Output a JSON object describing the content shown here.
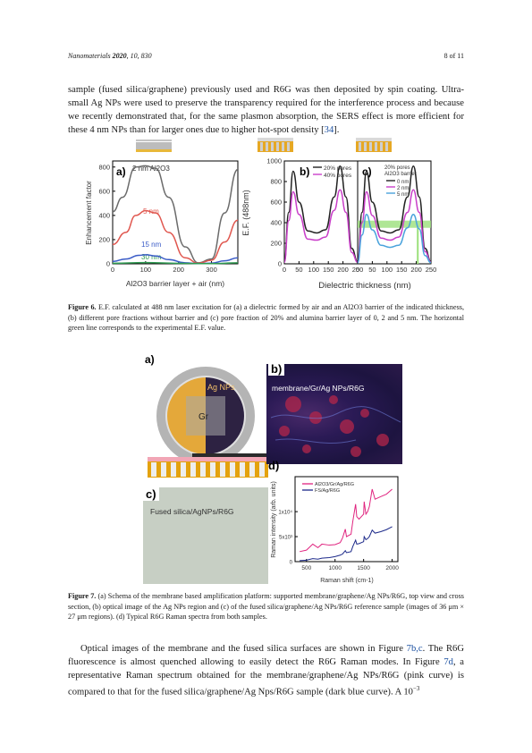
{
  "header": {
    "journal": "Nanomaterials",
    "year": "2020",
    "rest": ", 10, 830",
    "page": "8 of 11"
  },
  "para1": {
    "text": "sample (fused silica/graphene) previously used and R6G was then deposited by spin coating. Ultra-small Ag NPs were used to preserve the transparency required for the interference process and because we recently demonstrated that, for the same plasmon absorption, the SERS effect is more efficient for these 4 nm NPs than for larger ones due to higher hot-spot density [",
    "ref": "34",
    "end": "]."
  },
  "fig6": {
    "caption_label": "Figure 6.",
    "caption_text": " E.F. calculated at 488 nm laser excitation for (a) a dielectric formed by air and an Al2O3 barrier of the indicated thickness, (b) different pore fractions without barrier and (c) pore fraction of 20% and alumina barrier layer of 0, 2 and 5 nm. The horizontal green line corresponds to the experimental E.F. value.",
    "panel_a": {
      "label": "a)",
      "ylabel": "Enhancement factor",
      "xlabel": "Al2O3 barrier layer + air (nm)",
      "curve_labels": [
        "2 nm Al2O3",
        "5 nm",
        "15 nm",
        "30 nm"
      ]
    },
    "panel_b": {
      "label": "b)",
      "ylabel": "E.F. (488nm)",
      "legend": [
        "20% pores",
        "40% pores"
      ]
    },
    "panel_c": {
      "label": "c)",
      "legend_title": [
        "20% pores",
        "Al2O3 barrier"
      ],
      "legend": [
        "0 nm",
        "2 nm",
        "5 nm"
      ]
    },
    "shared_xlabel": "Dielectric thickness (nm)",
    "colors": {
      "gray": "#6b6b6b",
      "red": "#e0574f",
      "blue": "#3a5bc7",
      "green": "#2f9b52",
      "magenta": "#c93fc9",
      "black": "#222222",
      "lightblue": "#4aa3dc",
      "bar": "#9be07a"
    }
  },
  "fig7": {
    "caption_label": "Figure 7.",
    "caption_text": " (a) Schema of the membrane based amplification platform: supported membrane/graphene/Ag NPs/R6G, top view and cross section, (b) optical image of the Ag NPs region and (c) of the fused silica/graphene/Ag NPs/R6G reference sample (images of 36 μm × 27 μm regions). (d) Typical R6G Raman spectra from both samples.",
    "panel_a": {
      "label": "a)",
      "np_label": "Ag NPs",
      "gr_label": "Gr"
    },
    "panel_b": {
      "label": "b)",
      "title": "membrane/Gr/Ag NPs/R6G"
    },
    "panel_c": {
      "label": "c)",
      "title": "Fused silica/AgNPs/R6G"
    },
    "panel_d": {
      "label": "d)",
      "ylabel": "Raman intensity (arb. units)",
      "xlabel": "Raman shift (cm-1)",
      "legend": [
        "Al2O3/Gr/Ag/R6G",
        "FS/Ag/R6G"
      ]
    }
  },
  "para2": {
    "text1": "Optical images of the membrane and the fused silica surfaces are shown in Figure ",
    "ref1": "7b,c",
    "text2": ". The R6G fluorescence is almost quenched allowing to easily detect the R6G Raman modes. In Figure ",
    "ref2": "7d",
    "text3": ", a representative Raman spectrum obtained for the membrane/graphene/Ag NPs/R6G (pink curve) is compared to that for the fused silica/graphene/Ag Nps/R6G sample (dark blue curve). A 10",
    "sup": "−3"
  },
  "chart_data": [
    {
      "type": "line",
      "title": "a)",
      "xlabel": "Al2O3 barrier layer + air (nm)",
      "ylabel": "Enhancement factor",
      "xlim": [
        0,
        380
      ],
      "ylim": [
        0,
        850
      ],
      "xticks": [
        0,
        100,
        200,
        300
      ],
      "yticks": [
        0,
        200,
        400,
        600,
        800
      ],
      "series": [
        {
          "name": "2 nm Al2O3",
          "x": [
            0,
            30,
            70,
            100,
            130,
            170,
            220,
            260,
            300,
            340,
            380
          ],
          "y": [
            430,
            550,
            800,
            810,
            790,
            550,
            140,
            8,
            40,
            420,
            780
          ]
        },
        {
          "name": "5 nm",
          "x": [
            0,
            40,
            70,
            100,
            130,
            170,
            220,
            260,
            300,
            340,
            380
          ],
          "y": [
            160,
            260,
            400,
            440,
            420,
            260,
            50,
            5,
            30,
            180,
            360
          ]
        },
        {
          "name": "15 nm",
          "x": [
            0,
            40,
            80,
            100,
            130,
            170,
            220,
            260,
            300,
            340,
            380
          ],
          "y": [
            20,
            40,
            70,
            75,
            65,
            35,
            8,
            2,
            6,
            25,
            50
          ]
        },
        {
          "name": "30 nm",
          "x": [
            0,
            100,
            200,
            300,
            380
          ],
          "y": [
            5,
            10,
            4,
            2,
            8
          ]
        }
      ]
    },
    {
      "type": "line",
      "title": "b)",
      "xlabel": "Dielectric thickness (nm)",
      "ylabel": "E.F. (488nm)",
      "xlim": [
        0,
        250
      ],
      "ylim": [
        0,
        1000
      ],
      "xticks": [
        0,
        50,
        100,
        150,
        200,
        250
      ],
      "yticks": [
        0,
        200,
        400,
        600,
        800,
        1000
      ],
      "series": [
        {
          "name": "20% pores",
          "x": [
            0,
            15,
            30,
            50,
            80,
            110,
            140,
            170,
            190,
            210,
            230,
            250
          ],
          "y": [
            20,
            500,
            900,
            600,
            320,
            300,
            330,
            650,
            950,
            650,
            150,
            20
          ]
        },
        {
          "name": "40% pores",
          "x": [
            0,
            15,
            30,
            50,
            80,
            110,
            140,
            170,
            190,
            210,
            230,
            250
          ],
          "y": [
            15,
            420,
            700,
            480,
            240,
            230,
            260,
            520,
            720,
            500,
            110,
            15
          ]
        }
      ]
    },
    {
      "type": "line",
      "title": "c)",
      "xlabel": "Dielectric thickness (nm)",
      "ylabel": "",
      "xlim": [
        0,
        250
      ],
      "ylim": [
        0,
        1000
      ],
      "xticks": [
        0,
        50,
        100,
        150,
        200,
        250
      ],
      "series": [
        {
          "name": "0 nm",
          "x": [
            0,
            15,
            30,
            50,
            80,
            110,
            140,
            170,
            190,
            210,
            230,
            250
          ],
          "y": [
            20,
            500,
            900,
            600,
            320,
            300,
            330,
            650,
            950,
            650,
            150,
            20
          ]
        },
        {
          "name": "2 nm",
          "x": [
            0,
            15,
            30,
            50,
            80,
            110,
            140,
            170,
            190,
            210,
            230,
            250
          ],
          "y": [
            15,
            400,
            700,
            470,
            250,
            230,
            260,
            500,
            720,
            500,
            120,
            15
          ]
        },
        {
          "name": "5 nm",
          "x": [
            0,
            15,
            30,
            50,
            80,
            110,
            140,
            170,
            190,
            210,
            230,
            250
          ],
          "y": [
            10,
            280,
            480,
            330,
            180,
            160,
            180,
            350,
            480,
            340,
            80,
            10
          ]
        }
      ],
      "hband": {
        "y": [
          350,
          420
        ]
      }
    },
    {
      "type": "line",
      "title": "d)",
      "xlabel": "Raman shift (cm-1)",
      "ylabel": "Raman intensity (arb. units)",
      "xlim": [
        300,
        2100
      ],
      "ylim": [
        0,
        17000
      ],
      "xticks": [
        500,
        1000,
        1500,
        2000
      ],
      "yticks": [
        0,
        5000,
        10000
      ],
      "ytick_labels": [
        "0",
        "5x10³",
        "1x10⁴"
      ],
      "series": [
        {
          "name": "Al2O3/Gr/Ag/R6G",
          "x": [
            380,
            500,
            610,
            700,
            770,
            900,
            1000,
            1090,
            1130,
            1180,
            1200,
            1280,
            1310,
            1360,
            1380,
            1420,
            1500,
            1510,
            1540,
            1570,
            1600,
            1650,
            1700,
            1800,
            1900,
            2000
          ],
          "y": [
            2000,
            2300,
            3500,
            2800,
            3500,
            3300,
            3400,
            3800,
            4700,
            6500,
            5000,
            5500,
            8000,
            11500,
            9000,
            8500,
            9500,
            12000,
            9500,
            10000,
            11000,
            14500,
            12500,
            13000,
            13500,
            14500
          ]
        },
        {
          "name": "FS/Ag/R6G",
          "x": [
            380,
            500,
            610,
            700,
            770,
            900,
            1000,
            1090,
            1130,
            1180,
            1200,
            1280,
            1310,
            1360,
            1380,
            1420,
            1500,
            1510,
            1540,
            1570,
            1600,
            1650,
            1700,
            1800,
            1900,
            2000
          ],
          "y": [
            200,
            300,
            600,
            500,
            700,
            800,
            1000,
            1300,
            1500,
            2200,
            1800,
            2000,
            3000,
            4300,
            3500,
            3600,
            4000,
            5000,
            4400,
            4600,
            5000,
            6300,
            5700,
            6000,
            6400,
            7000
          ]
        }
      ]
    }
  ]
}
